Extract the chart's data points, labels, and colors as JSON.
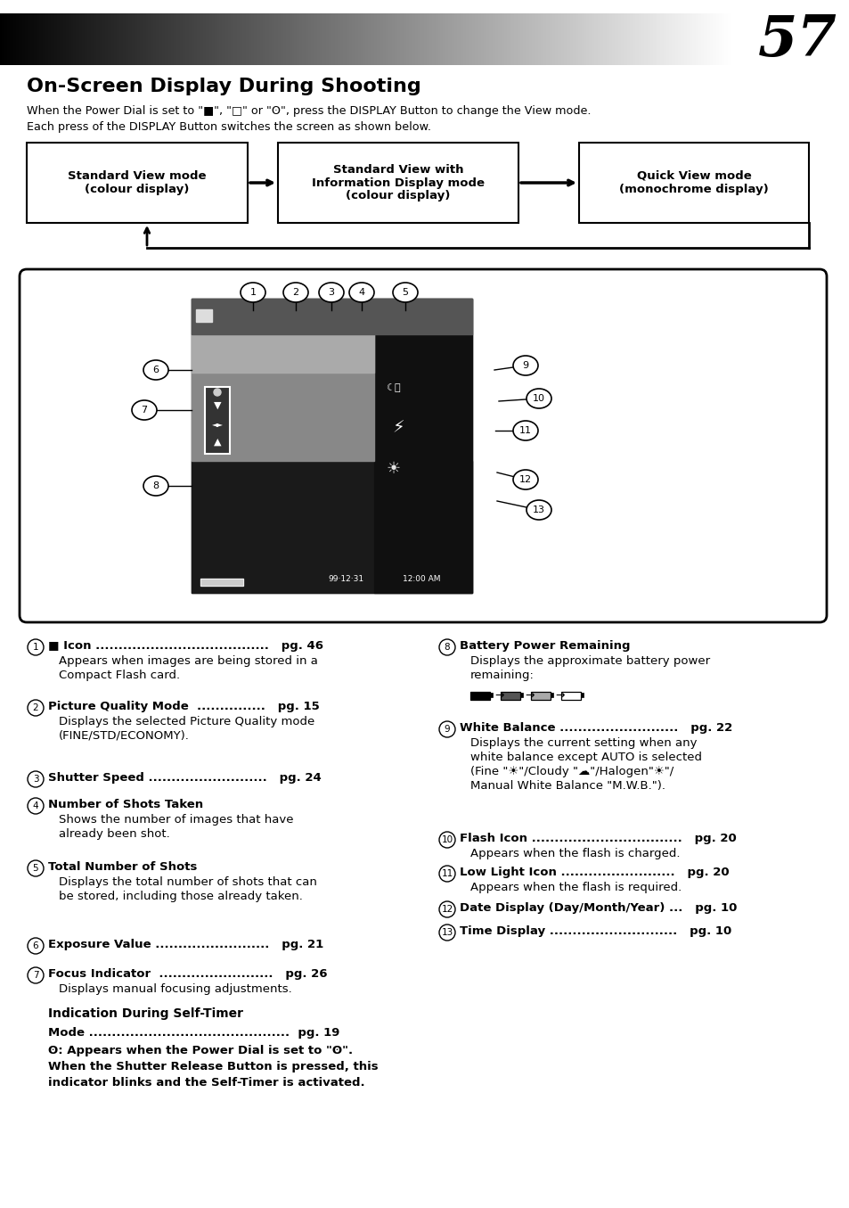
{
  "page_number": "57",
  "title": "On-Screen Display During Shooting",
  "intro1": "When the Power Dial is set to \"■\", \"□\" or \"ʘ\", press the DISPLAY Button to change the View mode.",
  "intro2": "Each press of the DISPLAY Button switches the screen as shown below.",
  "flow_boxes": [
    "Standard View mode\n(colour display)",
    "Standard View with\nInformation Display mode\n(colour display)",
    "Quick View mode\n(monochrome display)"
  ],
  "items_left": [
    [
      "1",
      "■ Icon ......................................",
      "pg. 46",
      "Appears when images are being stored in a\nCompact Flash card."
    ],
    [
      "2",
      "Picture Quality Mode  ...............",
      "pg. 15",
      "Displays the selected Picture Quality mode\n(FINE/STD/ECONOMY)."
    ],
    [
      "3",
      "Shutter Speed ..........................",
      "pg. 24",
      ""
    ],
    [
      "4",
      "Number of Shots Taken",
      "",
      "Shows the number of images that have\nalready been shot."
    ],
    [
      "5",
      "Total Number of Shots",
      "",
      "Displays the total number of shots that can\nbe stored, including those already taken."
    ],
    [
      "6",
      "Exposure Value .........................",
      "pg. 21",
      ""
    ],
    [
      "7",
      "Focus Indicator  .........................",
      "pg. 26",
      "Displays manual focusing adjustments."
    ]
  ],
  "items_right": [
    [
      "8",
      "Battery Power Remaining",
      "",
      "Displays the approximate battery power\nremaining:"
    ],
    [
      "9",
      "White Balance ..........................",
      "pg. 22",
      "Displays the current setting when any\nwhite balance except AUTO is selected\n(Fine \"☀\"/Cloudy \"☁•\"/Halogen\"☀❊\"/\nManual White Balance \"​M.W.B.\")."
    ],
    [
      "10",
      "Flash Icon .................................",
      "pg. 20",
      "Appears when the flash is charged."
    ],
    [
      "11",
      "Low Light Icon .........................",
      "pg. 20",
      "Appears when the flash is required."
    ],
    [
      "12",
      "Date Display (Day/Month/Year) ...",
      "pg. 10",
      ""
    ],
    [
      "13",
      "Time Display ............................",
      "pg. 10",
      ""
    ]
  ],
  "self_timer_heading": "Indication During Self-Timer",
  "self_timer_mode": "Mode ............................................  pg. 19",
  "self_timer_line1": "ʘ: Appears when the Power Dial is set to \"ʘ\".",
  "self_timer_line2": "When the Shutter Release Button is pressed, this",
  "self_timer_line3": "indicator blinks and the Self-Timer is activated.",
  "bg_color": "#ffffff"
}
